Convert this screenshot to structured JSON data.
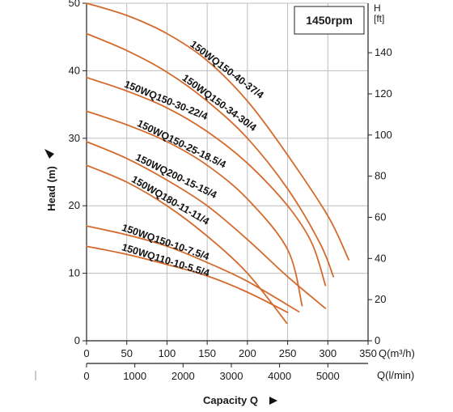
{
  "chart_data": {
    "type": "line",
    "speed_label": "1450rpm",
    "xlabel": "Capacity Q",
    "ylabel": "Head (m)",
    "x_unit_label": "Q(m³/h)",
    "x2_unit_label": "Q(l/min)",
    "y2_title": "H",
    "y2_unit": "[ft]",
    "xlim": [
      0,
      350
    ],
    "ylim": [
      0,
      50
    ],
    "x_ticks": [
      "0",
      "50",
      "100",
      "150",
      "200",
      "250",
      "300",
      "350"
    ],
    "x2_ticks": [
      "0",
      "1000",
      "2000",
      "3000",
      "4000",
      "5000"
    ],
    "y_ticks": [
      "0",
      "10",
      "20",
      "30",
      "40",
      "50"
    ],
    "y2_ticks": [
      "0",
      "20",
      "40",
      "60",
      "80",
      "100",
      "120",
      "140"
    ],
    "grid": true,
    "line_color": "#d46a2c",
    "series": [
      {
        "name": "150WQ150-40-37/4",
        "x": [
          0,
          50,
          100,
          150,
          200,
          250,
          300,
          326
        ],
        "y": [
          50,
          48.2,
          45.5,
          41.5,
          35.5,
          27.5,
          18.5,
          12
        ]
      },
      {
        "name": "150WQ150-34-30/4",
        "x": [
          0,
          50,
          100,
          150,
          200,
          250,
          290,
          307
        ],
        "y": [
          45.5,
          43,
          39.8,
          35.5,
          30,
          22.5,
          14.5,
          9.5
        ]
      },
      {
        "name": "150WQ150-30-22/4",
        "x": [
          0,
          50,
          100,
          150,
          200,
          250,
          280,
          297
        ],
        "y": [
          39,
          37,
          34.5,
          31,
          26.3,
          20,
          14.5,
          8.2
        ]
      },
      {
        "name": "150WQ150-25-18.5/4",
        "x": [
          0,
          50,
          100,
          150,
          200,
          250,
          268
        ],
        "y": [
          34,
          32,
          29.5,
          26,
          21,
          13.5,
          5.2
        ]
      },
      {
        "name": "150WQ200-15-15/4",
        "x": [
          0,
          50,
          100,
          150,
          200,
          250,
          297
        ],
        "y": [
          29.5,
          27,
          23.8,
          20,
          15,
          9.5,
          4.8
        ]
      },
      {
        "name": "150WQ180-11-11/4",
        "x": [
          0,
          50,
          100,
          150,
          200,
          249
        ],
        "y": [
          26,
          23.5,
          20,
          15.5,
          10,
          2.6
        ]
      },
      {
        "name": "150WQ150-10-7.5/4",
        "x": [
          0,
          50,
          100,
          150,
          200,
          264
        ],
        "y": [
          17,
          15.7,
          14,
          11.6,
          8.8,
          4.3
        ]
      },
      {
        "name": "150WQ110-10-5.5/4",
        "x": [
          0,
          50,
          100,
          150,
          200,
          250
        ],
        "y": [
          14,
          12.8,
          11.3,
          9.6,
          7.2,
          4.2
        ]
      }
    ]
  }
}
